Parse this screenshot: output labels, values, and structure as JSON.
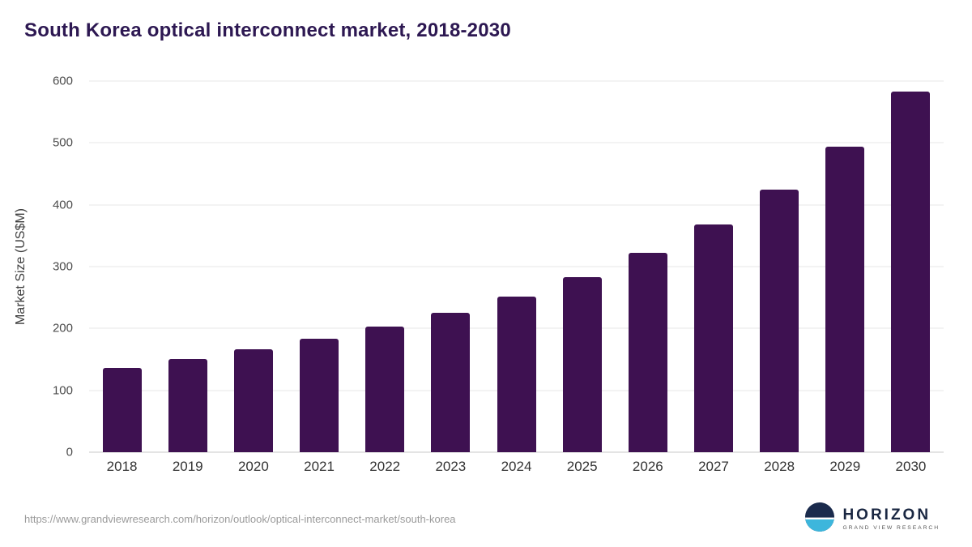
{
  "chart_data": {
    "type": "bar",
    "title": "South Korea optical interconnect market, 2018-2030",
    "categories": [
      "2018",
      "2019",
      "2020",
      "2021",
      "2022",
      "2023",
      "2024",
      "2025",
      "2026",
      "2027",
      "2028",
      "2029",
      "2030"
    ],
    "values": [
      136,
      151,
      167,
      184,
      203,
      226,
      252,
      283,
      322,
      368,
      424,
      494,
      583
    ],
    "xlabel": "",
    "ylabel": "Market Size (US$M)",
    "ylim": [
      0,
      600
    ],
    "yticks": [
      0,
      100,
      200,
      300,
      400,
      500,
      600
    ],
    "grid": "horizontal",
    "legend": "none",
    "bar_color": "#3e1151"
  },
  "footer": {
    "source_url": "https://www.grandviewresearch.com/horizon/outlook/optical-interconnect-market/south-korea",
    "logo_title": "HORIZON",
    "logo_subtitle": "GRAND VIEW RESEARCH"
  },
  "colors": {
    "title_text": "#2d1852",
    "bar": "#3e1151",
    "gridline": "#e7e7e7",
    "axis_text": "#3d3d3d",
    "url_text": "#9a9a9a",
    "logo_navy": "#1b2b4d",
    "logo_blue": "#3db6dc"
  }
}
